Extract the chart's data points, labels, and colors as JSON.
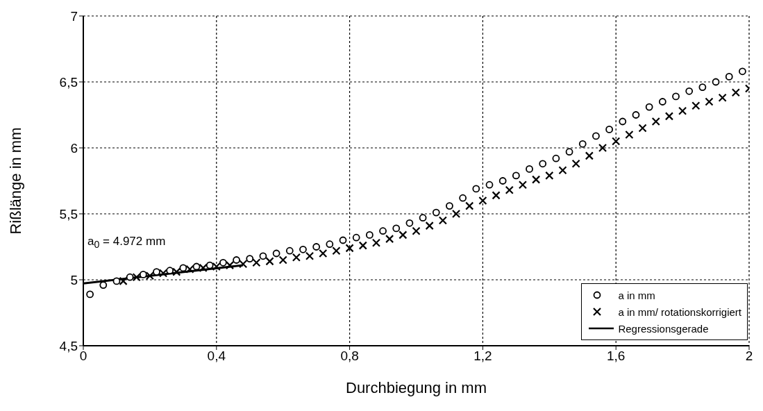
{
  "chart_data": {
    "type": "scatter",
    "xlabel": "Durchbiegung in mm",
    "ylabel": "Rißlänge in mm",
    "annotations": [
      "a$_{0}$ = 4.972 mm"
    ],
    "xlim": [
      0,
      2
    ],
    "ylim": [
      4.5,
      7
    ],
    "xticks": [
      0,
      {
        "value": 0.4,
        "label": "0,4"
      },
      {
        "value": 0.8,
        "label": "0,8"
      },
      {
        "value": 1.2,
        "label": "1,2"
      },
      {
        "value": 1.6,
        "label": "1,6"
      },
      2
    ],
    "yticks": [
      {
        "value": 4.5,
        "label": "4,5"
      },
      5,
      {
        "value": 5.5,
        "label": "5,5"
      },
      6,
      {
        "value": 6.5,
        "label": "6,5"
      },
      7
    ],
    "grid": true,
    "legend": "bottom right",
    "series": [
      {
        "name": "a in mm",
        "marker": "circle",
        "color": "#000000",
        "x": [
          0.02,
          0.06,
          0.1,
          0.14,
          0.18,
          0.22,
          0.26,
          0.3,
          0.34,
          0.38,
          0.42,
          0.46,
          0.5,
          0.54,
          0.58,
          0.62,
          0.66,
          0.7,
          0.74,
          0.78,
          0.82,
          0.86,
          0.9,
          0.94,
          0.98,
          1.02,
          1.06,
          1.1,
          1.14,
          1.18,
          1.22,
          1.26,
          1.3,
          1.34,
          1.38,
          1.42,
          1.46,
          1.5,
          1.54,
          1.58,
          1.62,
          1.66,
          1.7,
          1.74,
          1.78,
          1.82,
          1.86,
          1.9,
          1.94,
          1.98
        ],
        "values": [
          4.89,
          4.96,
          4.99,
          5.02,
          5.04,
          5.06,
          5.07,
          5.09,
          5.1,
          5.11,
          5.13,
          5.15,
          5.16,
          5.18,
          5.2,
          5.22,
          5.23,
          5.25,
          5.27,
          5.3,
          5.32,
          5.34,
          5.37,
          5.39,
          5.43,
          5.47,
          5.51,
          5.56,
          5.62,
          5.69,
          5.72,
          5.75,
          5.79,
          5.84,
          5.88,
          5.92,
          5.97,
          6.03,
          6.09,
          6.14,
          6.2,
          6.25,
          6.31,
          6.35,
          6.39,
          6.43,
          6.46,
          6.5,
          6.54,
          6.58
        ]
      },
      {
        "name": "a in mm/ rotationskorrigiert",
        "marker": "cross",
        "color": "#000000",
        "x": [
          0.12,
          0.16,
          0.2,
          0.24,
          0.28,
          0.32,
          0.36,
          0.4,
          0.44,
          0.48,
          0.52,
          0.56,
          0.6,
          0.64,
          0.68,
          0.72,
          0.76,
          0.8,
          0.84,
          0.88,
          0.92,
          0.96,
          1.0,
          1.04,
          1.08,
          1.12,
          1.16,
          1.2,
          1.24,
          1.28,
          1.32,
          1.36,
          1.4,
          1.44,
          1.48,
          1.52,
          1.56,
          1.6,
          1.64,
          1.68,
          1.72,
          1.76,
          1.8,
          1.84,
          1.88,
          1.92,
          1.96,
          2.0
        ],
        "values": [
          4.99,
          5.02,
          5.03,
          5.05,
          5.06,
          5.08,
          5.09,
          5.1,
          5.11,
          5.12,
          5.13,
          5.14,
          5.15,
          5.17,
          5.18,
          5.2,
          5.22,
          5.24,
          5.26,
          5.28,
          5.31,
          5.34,
          5.37,
          5.41,
          5.45,
          5.5,
          5.56,
          5.6,
          5.64,
          5.68,
          5.72,
          5.76,
          5.79,
          5.83,
          5.88,
          5.94,
          6.0,
          6.05,
          6.1,
          6.15,
          6.2,
          6.24,
          6.28,
          6.32,
          6.35,
          6.38,
          6.42,
          6.45
        ]
      },
      {
        "name": "Regressionsgerade",
        "type": "line",
        "marker": "none",
        "color": "#000000",
        "x": [
          0,
          0.48
        ],
        "values": [
          4.972,
          5.11
        ]
      }
    ]
  }
}
